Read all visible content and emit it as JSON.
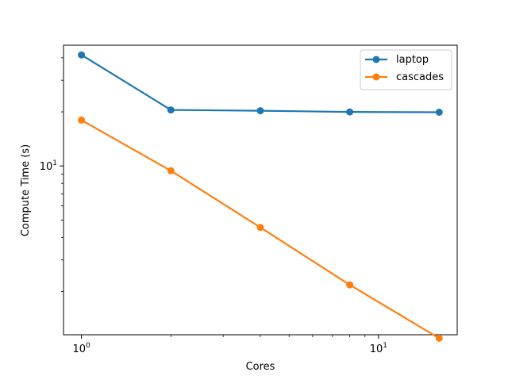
{
  "chart_data": {
    "type": "line",
    "xscale": "log",
    "yscale": "log",
    "xlabel": "Cores",
    "ylabel": "Compute Time (s)",
    "xlim": [
      0.87,
      18.4
    ],
    "ylim": [
      1.15,
      47
    ],
    "xticks": [
      {
        "value": 1,
        "base": "10",
        "exp": "0"
      },
      {
        "value": 10,
        "base": "10",
        "exp": "1"
      }
    ],
    "yticks": [
      {
        "value": 10,
        "base": "10",
        "exp": "1"
      }
    ],
    "x": [
      1,
      2,
      4,
      8,
      16
    ],
    "series": [
      {
        "name": "laptop",
        "color": "#1f77b4",
        "values": [
          41.5,
          20.5,
          20.3,
          20.0,
          19.9
        ]
      },
      {
        "name": "cascades",
        "color": "#ff7f0e",
        "values": [
          18.0,
          9.4,
          4.55,
          2.18,
          1.1
        ]
      }
    ],
    "legend_position": "top-right",
    "grid": false
  }
}
